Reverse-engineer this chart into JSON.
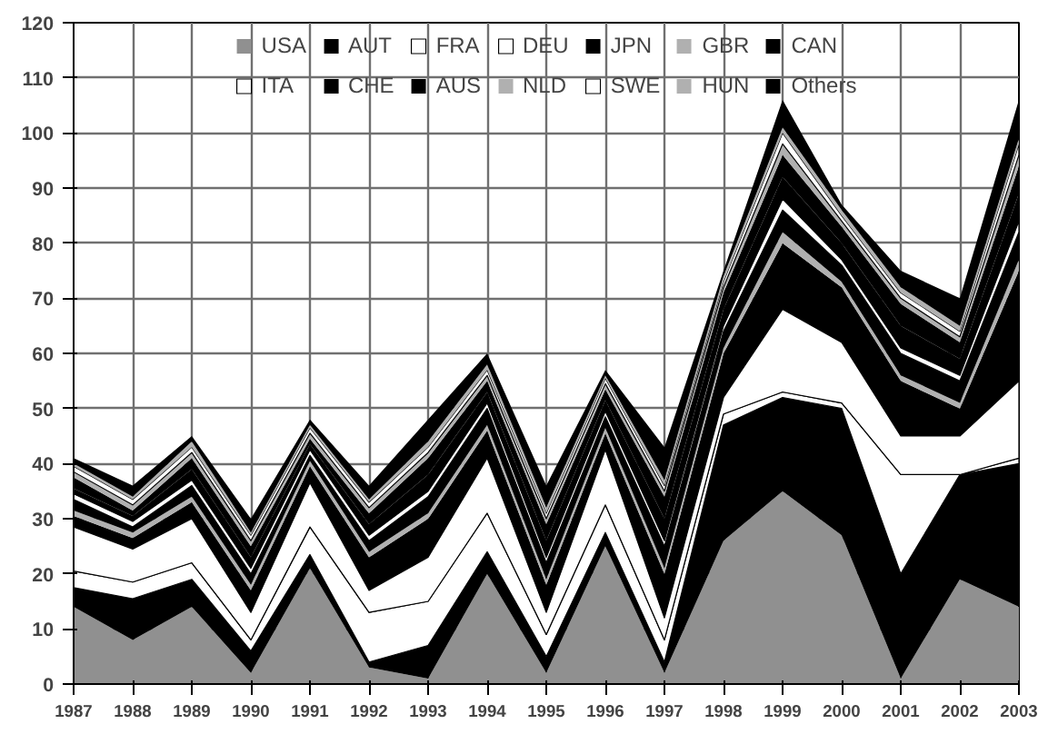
{
  "chart_data": {
    "type": "area",
    "stacked": true,
    "categories": [
      "1987",
      "1988",
      "1989",
      "1990",
      "1991",
      "1992",
      "1993",
      "1994",
      "1995",
      "1996",
      "1997",
      "1998",
      "1999",
      "2000",
      "2001",
      "2002",
      "2003"
    ],
    "ylim": [
      0,
      120
    ],
    "yticks": [
      0,
      10,
      20,
      30,
      40,
      50,
      60,
      70,
      80,
      90,
      100,
      110,
      120
    ],
    "grid": true,
    "legend": "top",
    "series": [
      {
        "name": "USA",
        "color": "#909090",
        "values": [
          14,
          8,
          14,
          2,
          21,
          3,
          1,
          20,
          2,
          25,
          2,
          26,
          35,
          27,
          1,
          19,
          14
        ]
      },
      {
        "name": "AUT",
        "color": "#000000",
        "values": [
          3.5,
          7.5,
          5,
          4,
          2.5,
          1,
          6,
          4,
          3,
          2.5,
          2,
          21,
          17,
          23,
          19,
          19,
          26
        ]
      },
      {
        "name": "FRA",
        "color": "#ffffff",
        "values": [
          3,
          3,
          3,
          2,
          5,
          9,
          8,
          7,
          4,
          5,
          4,
          2,
          1,
          1,
          18,
          0,
          1
        ]
      },
      {
        "name": "DEU",
        "color": "#ffffff",
        "values": [
          8,
          6,
          8,
          5,
          8,
          4,
          8,
          10,
          4,
          10,
          4,
          3,
          15,
          11,
          7,
          7,
          14
        ]
      },
      {
        "name": "JPN",
        "color": "#000000",
        "values": [
          2,
          2,
          3,
          4,
          3,
          6,
          7,
          5,
          5,
          3,
          8,
          8,
          12,
          10,
          10,
          5,
          20
        ]
      },
      {
        "name": "GBR",
        "color": "#b0b0b0",
        "values": [
          1,
          1,
          1,
          1,
          1,
          1,
          1,
          1,
          1,
          1,
          1,
          1,
          2,
          1,
          1,
          1,
          2
        ]
      },
      {
        "name": "CAN",
        "color": "#000000",
        "values": [
          2,
          1,
          2,
          2,
          1,
          2,
          3,
          3,
          3,
          2,
          4,
          3,
          4,
          3,
          4,
          4,
          5
        ]
      },
      {
        "name": "ITA",
        "color": "#ffffff",
        "values": [
          1,
          1,
          1,
          1,
          1,
          1,
          1,
          1,
          1,
          1,
          1,
          1,
          2,
          1,
          1,
          1,
          2
        ]
      },
      {
        "name": "CHE",
        "color": "#000000",
        "values": [
          1,
          1,
          2,
          2,
          1,
          2,
          3,
          2,
          3,
          2,
          4,
          3,
          4,
          3,
          4,
          3,
          5
        ]
      },
      {
        "name": "AUS",
        "color": "#000000",
        "values": [
          2,
          1,
          2,
          2,
          1,
          2,
          3,
          2,
          3,
          2,
          4,
          3,
          4,
          3,
          4,
          3,
          5
        ]
      },
      {
        "name": "NLD",
        "color": "#b0b0b0",
        "values": [
          1,
          1,
          1,
          1,
          1,
          1,
          1,
          1,
          1,
          1,
          1,
          1,
          2,
          1,
          1,
          1,
          2
        ]
      },
      {
        "name": "SWE",
        "color": "#ffffff",
        "values": [
          1,
          1,
          1,
          1,
          1,
          1,
          1,
          1,
          1,
          1,
          1,
          1,
          2,
          1,
          1,
          1,
          2
        ]
      },
      {
        "name": "HUN",
        "color": "#b0b0b0",
        "values": [
          0.5,
          0.5,
          1,
          0.5,
          0.5,
          0.5,
          1,
          1,
          1,
          0.5,
          1,
          1,
          1,
          1,
          1,
          1,
          1
        ]
      },
      {
        "name": "Others",
        "color": "#000000",
        "values": [
          1,
          2,
          1,
          2.5,
          1,
          2.5,
          4,
          2,
          4,
          1,
          6,
          1,
          5,
          1,
          3,
          5,
          7
        ]
      }
    ]
  }
}
